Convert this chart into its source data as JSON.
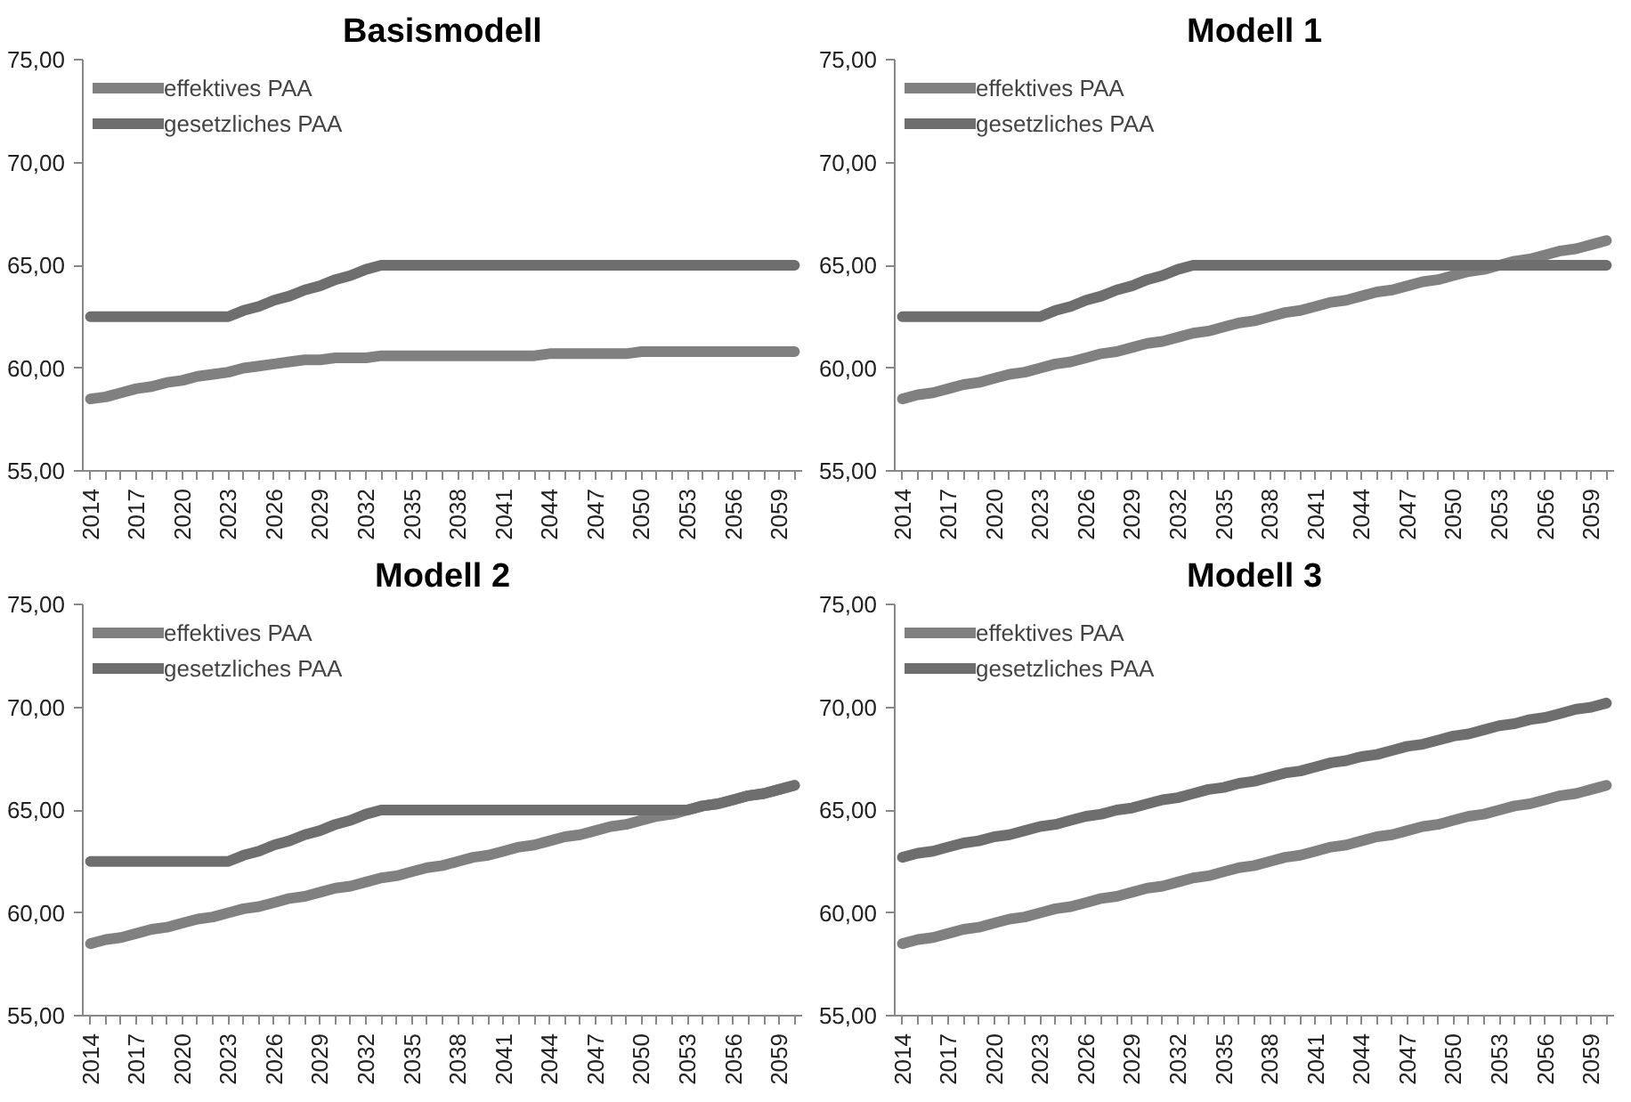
{
  "chart_data": [
    {
      "type": "line",
      "title": "Basismodell",
      "categories": [
        "2014",
        null,
        null,
        "2017",
        null,
        null,
        "2020",
        null,
        null,
        "2023",
        null,
        null,
        "2026",
        null,
        null,
        "2029",
        null,
        null,
        "2032",
        null,
        null,
        "2035",
        null,
        null,
        "2038",
        null,
        null,
        "2041",
        null,
        null,
        "2044",
        null,
        null,
        "2047",
        null,
        null,
        "2050",
        null,
        null,
        "2053",
        null,
        null,
        "2056",
        null,
        null,
        "2059",
        null
      ],
      "ylim": [
        55,
        75
      ],
      "yticks": [
        {
          "value": 55,
          "label": "55,00"
        },
        {
          "value": 60,
          "label": "60,00"
        },
        {
          "value": 65,
          "label": "65,00"
        },
        {
          "value": 70,
          "label": "70,00"
        },
        {
          "value": 75,
          "label": "75,00"
        }
      ],
      "legend": "top left",
      "series": [
        {
          "name": "effektives PAA",
          "color": "#808080",
          "values": [
            58.5,
            58.6,
            58.8,
            59.0,
            59.1,
            59.3,
            59.4,
            59.6,
            59.7,
            59.8,
            60.0,
            60.1,
            60.2,
            60.3,
            60.4,
            60.4,
            60.5,
            60.5,
            60.5,
            60.6,
            60.6,
            60.6,
            60.6,
            60.6,
            60.6,
            60.6,
            60.6,
            60.6,
            60.6,
            60.6,
            60.7,
            60.7,
            60.7,
            60.7,
            60.7,
            60.7,
            60.8,
            60.8,
            60.8,
            60.8,
            60.8,
            60.8,
            60.8,
            60.8,
            60.8,
            60.8,
            60.8
          ]
        },
        {
          "name": "gesetzliches PAA",
          "color": "#6e6e6e",
          "values": [
            62.5,
            62.5,
            62.5,
            62.5,
            62.5,
            62.5,
            62.5,
            62.5,
            62.5,
            62.5,
            62.8,
            63.0,
            63.3,
            63.5,
            63.8,
            64.0,
            64.3,
            64.5,
            64.8,
            65.0,
            65.0,
            65.0,
            65.0,
            65.0,
            65.0,
            65.0,
            65.0,
            65.0,
            65.0,
            65.0,
            65.0,
            65.0,
            65.0,
            65.0,
            65.0,
            65.0,
            65.0,
            65.0,
            65.0,
            65.0,
            65.0,
            65.0,
            65.0,
            65.0,
            65.0,
            65.0,
            65.0
          ]
        }
      ]
    },
    {
      "type": "line",
      "title": "Modell 1",
      "categories": [
        "2014",
        null,
        null,
        "2017",
        null,
        null,
        "2020",
        null,
        null,
        "2023",
        null,
        null,
        "2026",
        null,
        null,
        "2029",
        null,
        null,
        "2032",
        null,
        null,
        "2035",
        null,
        null,
        "2038",
        null,
        null,
        "2041",
        null,
        null,
        "2044",
        null,
        null,
        "2047",
        null,
        null,
        "2050",
        null,
        null,
        "2053",
        null,
        null,
        "2056",
        null,
        null,
        "2059",
        null
      ],
      "ylim": [
        55,
        75
      ],
      "yticks": [
        {
          "value": 55,
          "label": "55,00"
        },
        {
          "value": 60,
          "label": "60,00"
        },
        {
          "value": 65,
          "label": "65,00"
        },
        {
          "value": 70,
          "label": "70,00"
        },
        {
          "value": 75,
          "label": "75,00"
        }
      ],
      "legend": "top left",
      "series": [
        {
          "name": "effektives PAA",
          "color": "#808080",
          "values": [
            58.5,
            58.7,
            58.8,
            59.0,
            59.2,
            59.3,
            59.5,
            59.7,
            59.8,
            60.0,
            60.2,
            60.3,
            60.5,
            60.7,
            60.8,
            61.0,
            61.2,
            61.3,
            61.5,
            61.7,
            61.8,
            62.0,
            62.2,
            62.3,
            62.5,
            62.7,
            62.8,
            63.0,
            63.2,
            63.3,
            63.5,
            63.7,
            63.8,
            64.0,
            64.2,
            64.3,
            64.5,
            64.7,
            64.8,
            65.0,
            65.2,
            65.3,
            65.5,
            65.7,
            65.8,
            66.0,
            66.2
          ]
        },
        {
          "name": "gesetzliches PAA",
          "color": "#6e6e6e",
          "values": [
            62.5,
            62.5,
            62.5,
            62.5,
            62.5,
            62.5,
            62.5,
            62.5,
            62.5,
            62.5,
            62.8,
            63.0,
            63.3,
            63.5,
            63.8,
            64.0,
            64.3,
            64.5,
            64.8,
            65.0,
            65.0,
            65.0,
            65.0,
            65.0,
            65.0,
            65.0,
            65.0,
            65.0,
            65.0,
            65.0,
            65.0,
            65.0,
            65.0,
            65.0,
            65.0,
            65.0,
            65.0,
            65.0,
            65.0,
            65.0,
            65.0,
            65.0,
            65.0,
            65.0,
            65.0,
            65.0,
            65.0
          ]
        }
      ]
    },
    {
      "type": "line",
      "title": "Modell 2",
      "categories": [
        "2014",
        null,
        null,
        "2017",
        null,
        null,
        "2020",
        null,
        null,
        "2023",
        null,
        null,
        "2026",
        null,
        null,
        "2029",
        null,
        null,
        "2032",
        null,
        null,
        "2035",
        null,
        null,
        "2038",
        null,
        null,
        "2041",
        null,
        null,
        "2044",
        null,
        null,
        "2047",
        null,
        null,
        "2050",
        null,
        null,
        "2053",
        null,
        null,
        "2056",
        null,
        null,
        "2059",
        null
      ],
      "ylim": [
        55,
        75
      ],
      "yticks": [
        {
          "value": 55,
          "label": "55,00"
        },
        {
          "value": 60,
          "label": "60,00"
        },
        {
          "value": 65,
          "label": "65,00"
        },
        {
          "value": 70,
          "label": "70,00"
        },
        {
          "value": 75,
          "label": "75,00"
        }
      ],
      "legend": "top left",
      "series": [
        {
          "name": "effektives PAA",
          "color": "#808080",
          "values": [
            58.5,
            58.7,
            58.8,
            59.0,
            59.2,
            59.3,
            59.5,
            59.7,
            59.8,
            60.0,
            60.2,
            60.3,
            60.5,
            60.7,
            60.8,
            61.0,
            61.2,
            61.3,
            61.5,
            61.7,
            61.8,
            62.0,
            62.2,
            62.3,
            62.5,
            62.7,
            62.8,
            63.0,
            63.2,
            63.3,
            63.5,
            63.7,
            63.8,
            64.0,
            64.2,
            64.3,
            64.5,
            64.7,
            64.8,
            65.0,
            65.2,
            65.3,
            65.5,
            65.7,
            65.8,
            66.0,
            66.2
          ]
        },
        {
          "name": "gesetzliches PAA",
          "color": "#6e6e6e",
          "values": [
            62.5,
            62.5,
            62.5,
            62.5,
            62.5,
            62.5,
            62.5,
            62.5,
            62.5,
            62.5,
            62.8,
            63.0,
            63.3,
            63.5,
            63.8,
            64.0,
            64.3,
            64.5,
            64.8,
            65.0,
            65.0,
            65.0,
            65.0,
            65.0,
            65.0,
            65.0,
            65.0,
            65.0,
            65.0,
            65.0,
            65.0,
            65.0,
            65.0,
            65.0,
            65.0,
            65.0,
            65.0,
            65.0,
            65.0,
            65.0,
            65.2,
            65.3,
            65.5,
            65.7,
            65.8,
            66.0,
            66.2
          ]
        }
      ]
    },
    {
      "type": "line",
      "title": "Modell 3",
      "categories": [
        "2014",
        null,
        null,
        "2017",
        null,
        null,
        "2020",
        null,
        null,
        "2023",
        null,
        null,
        "2026",
        null,
        null,
        "2029",
        null,
        null,
        "2032",
        null,
        null,
        "2035",
        null,
        null,
        "2038",
        null,
        null,
        "2041",
        null,
        null,
        "2044",
        null,
        null,
        "2047",
        null,
        null,
        "2050",
        null,
        null,
        "2053",
        null,
        null,
        "2056",
        null,
        null,
        "2059",
        null
      ],
      "ylim": [
        55,
        75
      ],
      "yticks": [
        {
          "value": 55,
          "label": "55,00"
        },
        {
          "value": 60,
          "label": "60,00"
        },
        {
          "value": 65,
          "label": "65,00"
        },
        {
          "value": 70,
          "label": "70,00"
        },
        {
          "value": 75,
          "label": "75,00"
        }
      ],
      "legend": "top left",
      "series": [
        {
          "name": "effektives PAA",
          "color": "#808080",
          "values": [
            58.5,
            58.7,
            58.8,
            59.0,
            59.2,
            59.3,
            59.5,
            59.7,
            59.8,
            60.0,
            60.2,
            60.3,
            60.5,
            60.7,
            60.8,
            61.0,
            61.2,
            61.3,
            61.5,
            61.7,
            61.8,
            62.0,
            62.2,
            62.3,
            62.5,
            62.7,
            62.8,
            63.0,
            63.2,
            63.3,
            63.5,
            63.7,
            63.8,
            64.0,
            64.2,
            64.3,
            64.5,
            64.7,
            64.8,
            65.0,
            65.2,
            65.3,
            65.5,
            65.7,
            65.8,
            66.0,
            66.2
          ]
        },
        {
          "name": "gesetzliches PAA",
          "color": "#6e6e6e",
          "values": [
            62.7,
            62.9,
            63.0,
            63.2,
            63.4,
            63.5,
            63.7,
            63.8,
            64.0,
            64.2,
            64.3,
            64.5,
            64.7,
            64.8,
            65.0,
            65.1,
            65.3,
            65.5,
            65.6,
            65.8,
            66.0,
            66.1,
            66.3,
            66.4,
            66.6,
            66.8,
            66.9,
            67.1,
            67.3,
            67.4,
            67.6,
            67.7,
            67.9,
            68.1,
            68.2,
            68.4,
            68.6,
            68.7,
            68.9,
            69.1,
            69.2,
            69.4,
            69.5,
            69.7,
            69.9,
            70.0,
            70.2
          ]
        }
      ]
    }
  ]
}
